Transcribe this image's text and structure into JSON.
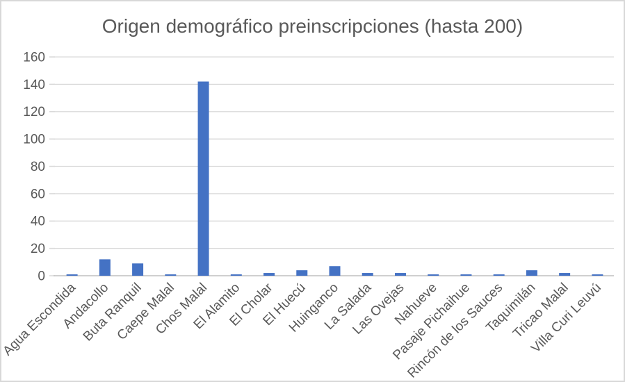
{
  "chart": {
    "title": "Origen demográfico preinscripciones (hasta 200)"
  },
  "chart_data": {
    "type": "bar",
    "title": "Origen demográfico preinscripciones (hasta 200)",
    "categories": [
      "Agua Escondida",
      "Andacollo",
      "Buta Ranquil",
      "Caepe Malal",
      "Chos Malal",
      "El Alamito",
      "El Cholar",
      "El Huecú",
      "Huinganco",
      "La Salada",
      "Las Ovejas",
      "Nahueve",
      "Pasaje Pichaihue",
      "Rincón de los Sauces",
      "Taquimilán",
      "Tricao Malal",
      "Villa Curi Leuvú"
    ],
    "values": [
      1,
      12,
      9,
      1,
      142,
      1,
      2,
      4,
      7,
      2,
      2,
      1,
      1,
      1,
      4,
      2,
      1
    ],
    "xlabel": "",
    "ylabel": "",
    "ylim": [
      0,
      160
    ],
    "ytick_step": 20,
    "yticks": [
      0,
      20,
      40,
      60,
      80,
      100,
      120,
      140,
      160
    ],
    "grid": true,
    "legend": false,
    "x_label_rotation_deg": 45,
    "bar_color": "#4472C4",
    "text_color": "#595959",
    "gridline_color": "#D9D9D9",
    "axis_line_color": "#BFBFBF",
    "frame_border_color": "#D8D8D8",
    "background_color": "#FFFFFF"
  }
}
